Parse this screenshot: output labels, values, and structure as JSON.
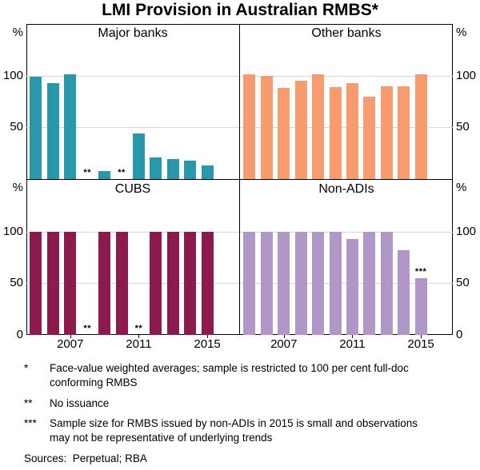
{
  "title": "LMI Provision in Australian RMBS*",
  "axis": {
    "unit": "%",
    "ymax": 150,
    "ticks_top": [
      "100",
      "50"
    ],
    "ticks_bottom": [
      "100",
      "50",
      "0"
    ],
    "x_ticks": [
      "2007",
      "2011",
      "2015"
    ]
  },
  "chart_data": [
    {
      "type": "bar",
      "title": "Major banks",
      "color": "#2799ab",
      "x": [
        2005,
        2006,
        2007,
        2008,
        2009,
        2010,
        2011,
        2012,
        2013,
        2014,
        2015
      ],
      "values": [
        99,
        93,
        101,
        null,
        8,
        null,
        44,
        21,
        19,
        18,
        13
      ],
      "annotations": [
        {
          "year": 2008,
          "text": "**"
        },
        {
          "year": 2010,
          "text": "**"
        }
      ],
      "ylim": [
        0,
        150
      ],
      "ylabel": "%",
      "grid": true
    },
    {
      "type": "bar",
      "title": "Other banks",
      "color": "#f89b6e",
      "x": [
        2005,
        2006,
        2007,
        2008,
        2009,
        2010,
        2011,
        2012,
        2013,
        2014,
        2015
      ],
      "values": [
        101,
        100,
        88,
        95,
        101,
        89,
        93,
        80,
        90,
        90,
        101
      ],
      "annotations": [],
      "ylim": [
        0,
        150
      ],
      "ylabel": "%",
      "grid": true
    },
    {
      "type": "bar",
      "title": "CUBS",
      "color": "#8d1a4d",
      "x": [
        2005,
        2006,
        2007,
        2008,
        2009,
        2010,
        2011,
        2012,
        2013,
        2014,
        2015
      ],
      "values": [
        100,
        100,
        100,
        null,
        100,
        100,
        null,
        100,
        100,
        100,
        100
      ],
      "annotations": [
        {
          "year": 2008,
          "text": "**"
        },
        {
          "year": 2011,
          "text": "**"
        }
      ],
      "ylim": [
        0,
        150
      ],
      "ylabel": "%",
      "grid": true
    },
    {
      "type": "bar",
      "title": "Non-ADIs",
      "color": "#b197c8",
      "x": [
        2005,
        2006,
        2007,
        2008,
        2009,
        2010,
        2011,
        2012,
        2013,
        2014,
        2015
      ],
      "values": [
        100,
        100,
        100,
        100,
        100,
        100,
        93,
        100,
        100,
        82,
        55
      ],
      "annotations": [
        {
          "year": 2015,
          "text": "***"
        }
      ],
      "ylim": [
        0,
        150
      ],
      "ylabel": "%",
      "grid": true
    }
  ],
  "footnotes": [
    {
      "marker": "*",
      "text": "Face-value weighted averages; sample is restricted to 100 per cent full-doc conforming RMBS"
    },
    {
      "marker": "**",
      "text": "No issuance"
    },
    {
      "marker": "***",
      "text": "Sample size for RMBS issued by non-ADIs in 2015 is small and observations may not be representative of underlying trends"
    }
  ],
  "sources": "Sources:  Perpetual; RBA"
}
